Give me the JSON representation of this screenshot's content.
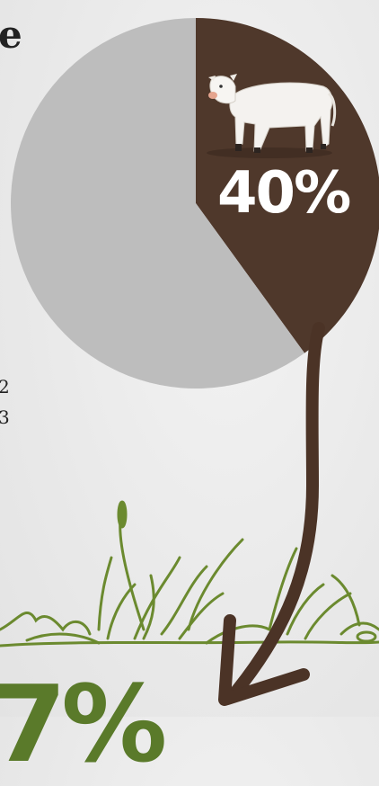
{
  "chart_data": {
    "type": "pie",
    "slices": [
      {
        "label": "40%",
        "value": 40,
        "color": "#4f382b"
      },
      {
        "label": "",
        "value": 60,
        "color": "#bdbdbd"
      }
    ]
  },
  "slice_label": "40%",
  "edge_text": {
    "top": "e",
    "mid1": "2",
    "mid2": "3"
  },
  "bottom_value_partial": "7%",
  "colors": {
    "accent_brown": "#4f382b",
    "pie_gray": "#bdbdbd",
    "grass_green": "#6b8a2f",
    "arrow": "#4b3326"
  },
  "icons": [
    "cow-illustration",
    "curved-arrow",
    "grass-illustration"
  ]
}
